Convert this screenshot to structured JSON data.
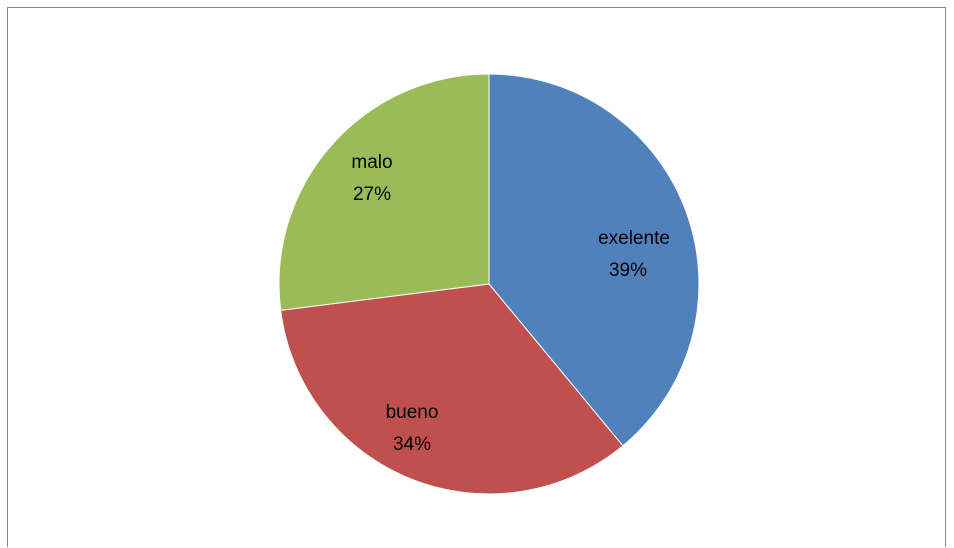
{
  "chart_data": {
    "type": "pie",
    "title": "",
    "categories": [
      "exelente",
      "bueno",
      "malo"
    ],
    "values": [
      39,
      34,
      27
    ],
    "labels": [
      {
        "name": "exelente",
        "percent": "39%"
      },
      {
        "name": "bueno",
        "percent": "34%"
      },
      {
        "name": "malo",
        "percent": "27%"
      }
    ],
    "colors": [
      "#4f81bd",
      "#c0504d",
      "#9bbb59"
    ],
    "legend": "none",
    "start_angle": "12 o'clock",
    "direction": "clockwise"
  }
}
